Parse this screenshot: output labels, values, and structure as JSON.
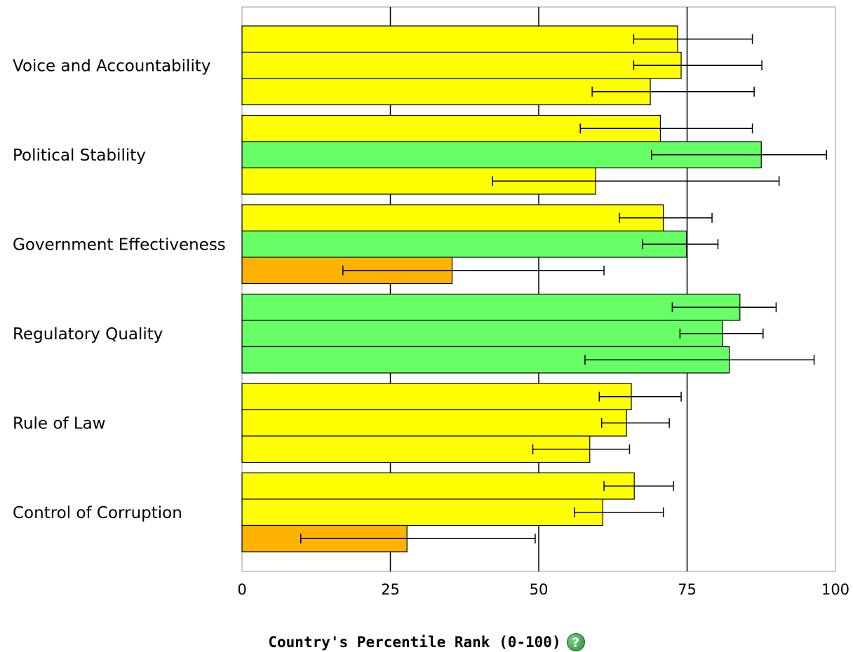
{
  "chart_data": {
    "type": "bar",
    "orientation": "horizontal",
    "categories": [
      "Voice and Accountability",
      "Political Stability",
      "Government Effectiveness",
      "Regulatory Quality",
      "Rule of Law",
      "Control of Corruption"
    ],
    "series": [
      {
        "values": [
          73.4,
          70.5,
          71.0,
          83.9,
          65.6,
          66.1
        ],
        "error_low": [
          66.0,
          57.0,
          63.6,
          72.5,
          60.2,
          61.0
        ],
        "error_high": [
          86.0,
          86.0,
          79.2,
          90.0,
          74.0,
          72.7
        ],
        "colors": [
          "#ffff00",
          "#ffff00",
          "#ffff00",
          "#66ff66",
          "#ffff00",
          "#ffff00"
        ]
      },
      {
        "values": [
          74.0,
          87.5,
          74.9,
          81.0,
          64.8,
          60.8
        ],
        "error_low": [
          66.0,
          69.0,
          67.5,
          73.8,
          60.6,
          56.0
        ],
        "error_high": [
          87.6,
          98.5,
          80.2,
          87.8,
          72.0,
          71.0
        ],
        "colors": [
          "#ffff00",
          "#66ff66",
          "#66ff66",
          "#66ff66",
          "#ffff00",
          "#ffff00"
        ]
      },
      {
        "values": [
          68.8,
          59.6,
          35.4,
          82.1,
          58.6,
          27.8
        ],
        "error_low": [
          59.0,
          42.2,
          17.0,
          57.8,
          49.0,
          9.9
        ],
        "error_high": [
          86.3,
          90.5,
          61.0,
          96.4,
          65.3,
          49.4
        ],
        "colors": [
          "#ffff00",
          "#ffff00",
          "#ffb300",
          "#66ff66",
          "#ffff00",
          "#ffb300"
        ]
      }
    ],
    "xlim": [
      0,
      100
    ],
    "xticks": [
      0,
      25,
      50,
      75,
      100
    ],
    "xtick_labels": [
      "0",
      "25",
      "50",
      "75",
      "100"
    ],
    "xlabel": "Country's Percentile Rank (0-100)",
    "grid": "vertical lines at ticks",
    "legend": "none"
  },
  "help_icon": {
    "glyph": "?",
    "name": "help-icon"
  }
}
